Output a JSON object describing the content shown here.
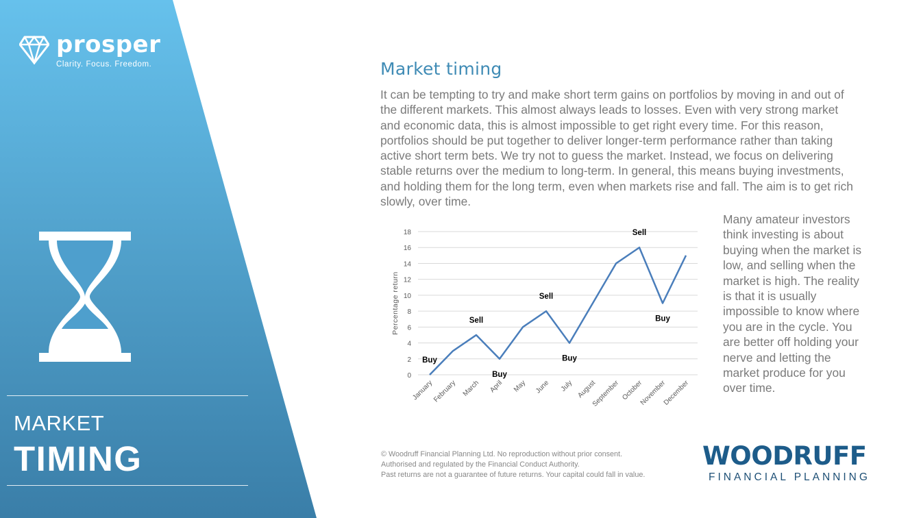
{
  "brand": {
    "name": "prosper",
    "tagline": "Clarity. Focus. Freedom."
  },
  "sidebar": {
    "line1": "MARKET",
    "line2": "TIMING"
  },
  "content": {
    "title": "Market timing",
    "intro": "It can be tempting to try and make short term gains on portfolios by moving in and out of the different markets.  This almost always leads to losses. Even with very strong market and economic data, this is almost impossible to get right every time. For this reason, portfolios should be put together to deliver longer-term performance rather than taking active short term bets.    We try not to guess the market.  Instead, we focus on delivering stable returns over the medium to long-term. In general, this means buying investments, and holding them for the long term, even when markets rise and fall. The aim is to get rich slowly, over time.",
    "side_text": "Many amateur investors think investing is about buying when the market is low, and selling when the market is high. The reality is that it is usually impossible to know where you are in the cycle. You are better off holding your nerve and letting the market produce for you over time."
  },
  "footer": {
    "line1": "© Woodruff Financial Planning Ltd. No reproduction without prior consent.",
    "line2": "Authorised and regulated by the Financial Conduct Authority.",
    "line3": "Past returns are not a guarantee of future returns. Your capital could fall in value."
  },
  "logo": {
    "name": "WOODRUFF",
    "subtitle": "FINANCIAL PLANNING"
  },
  "colors": {
    "panel_top": "#66c1ec",
    "panel_bottom": "#3a7ea8",
    "title": "#3f8bb5",
    "line": "#4a7ebb",
    "logo": "#1d5c8a"
  },
  "icons": {
    "brand": "diamond-icon",
    "sidebar": "hourglass-icon"
  },
  "chart_data": {
    "type": "line",
    "title": "",
    "xlabel": "",
    "ylabel": "Percentage return",
    "categories": [
      "January",
      "February",
      "March",
      "April",
      "May",
      "June",
      "July",
      "August",
      "September",
      "October",
      "November",
      "December"
    ],
    "values": [
      0,
      3,
      5,
      2,
      6,
      8,
      4,
      9,
      14,
      16,
      9,
      15
    ],
    "ylim": [
      0,
      18
    ],
    "yticks": [
      0,
      2,
      4,
      6,
      8,
      10,
      12,
      14,
      16,
      18
    ],
    "grid": true,
    "legend": "none",
    "annotations": [
      {
        "text": "Buy",
        "category": "January",
        "value": 0,
        "position": "above"
      },
      {
        "text": "Sell",
        "category": "March",
        "value": 5,
        "position": "above"
      },
      {
        "text": "Buy",
        "category": "April",
        "value": 2,
        "position": "below"
      },
      {
        "text": "Sell",
        "category": "June",
        "value": 8,
        "position": "above"
      },
      {
        "text": "Buy",
        "category": "July",
        "value": 4,
        "position": "below"
      },
      {
        "text": "Sell",
        "category": "October",
        "value": 16,
        "position": "above"
      },
      {
        "text": "Buy",
        "category": "November",
        "value": 9,
        "position": "below"
      }
    ]
  }
}
